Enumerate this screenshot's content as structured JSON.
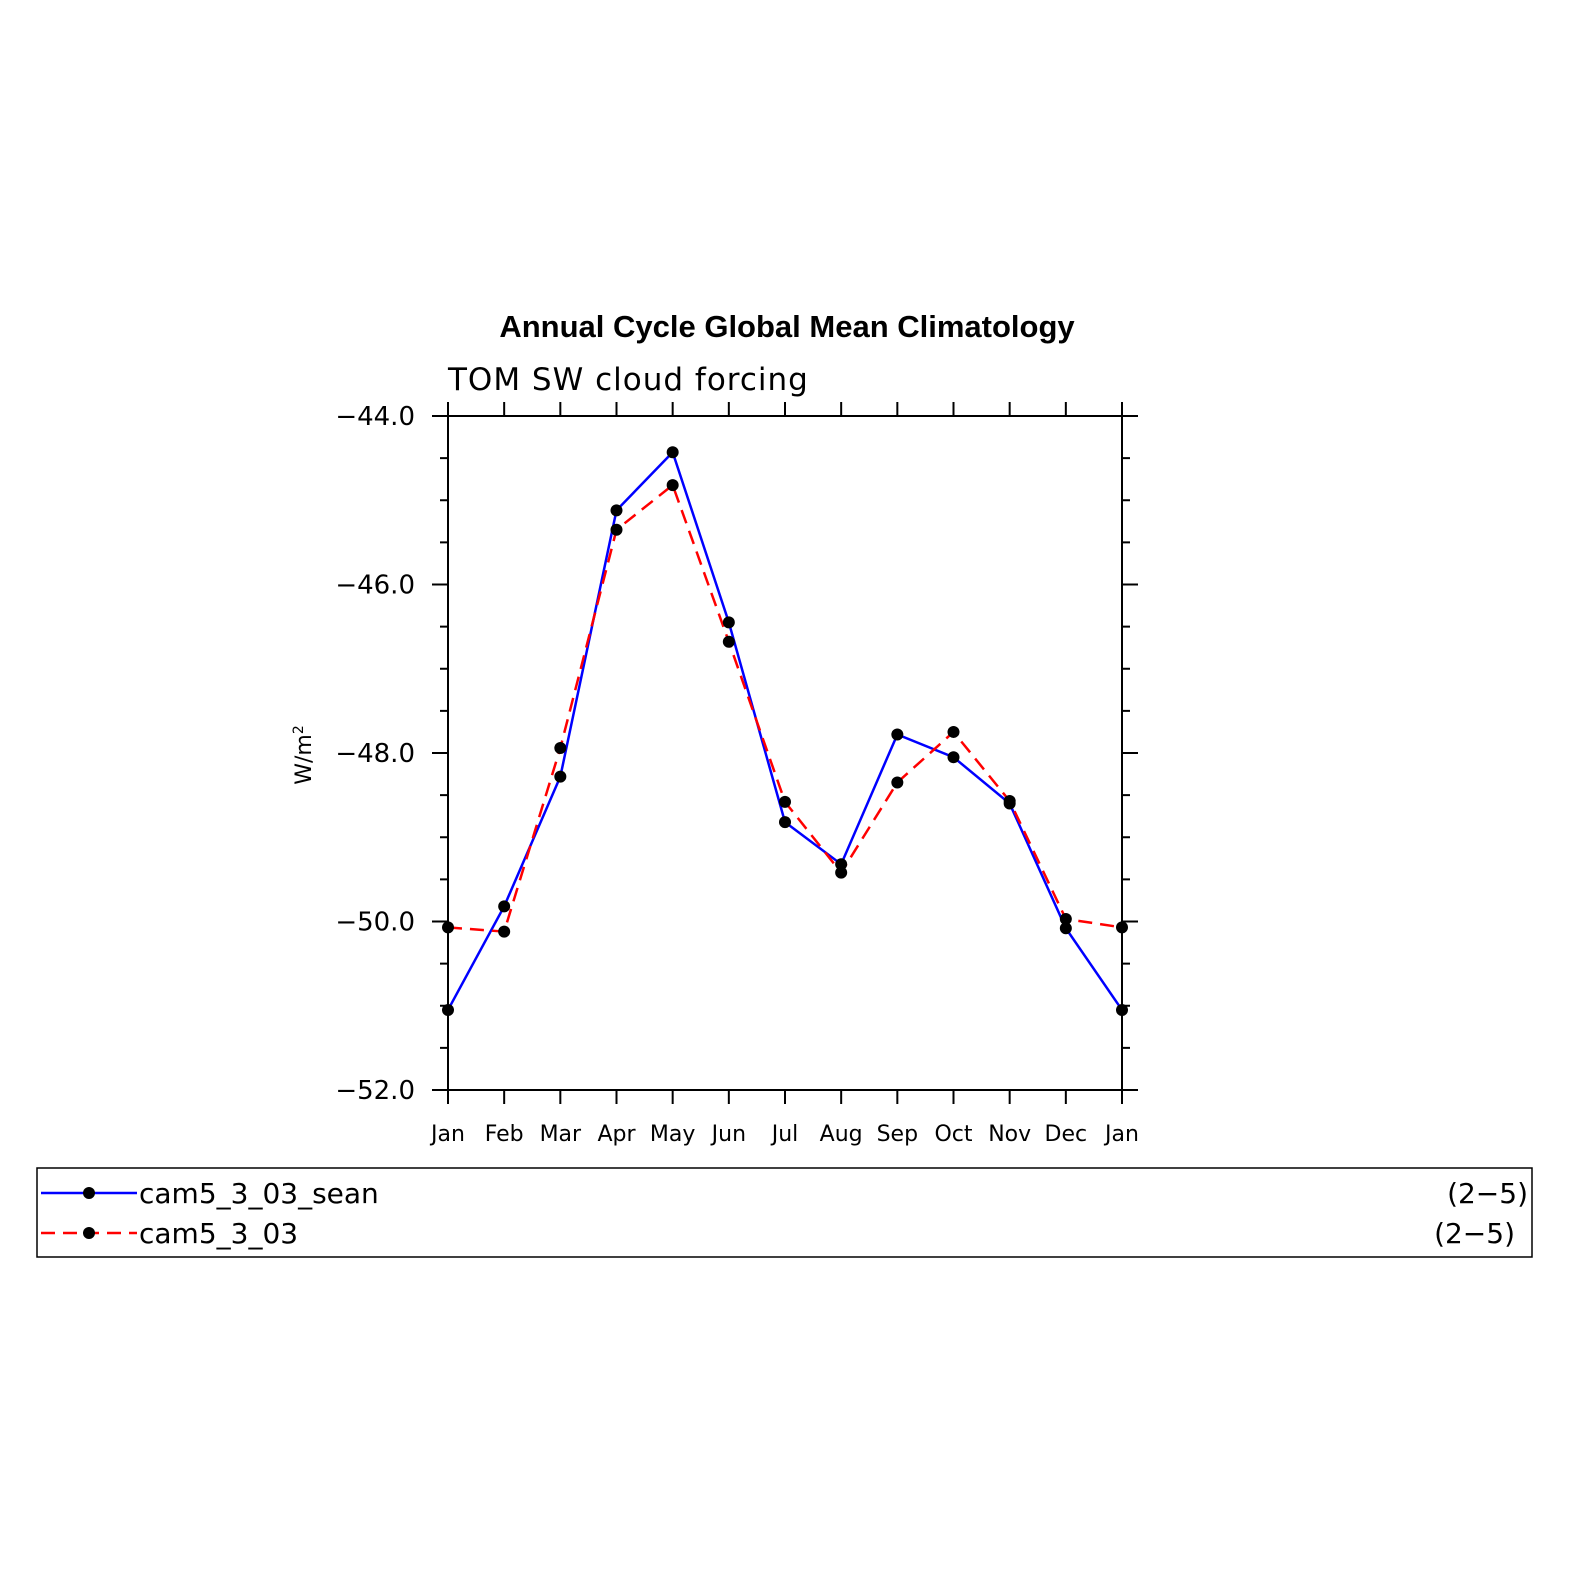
{
  "chart_data": {
    "type": "line",
    "title": "Annual Cycle Global Mean Climatology",
    "subtitle": "TOM SW cloud forcing",
    "ylabel_base": "W/m",
    "ylabel_sup": "2",
    "xlabel": "",
    "categories": [
      "Jan",
      "Feb",
      "Mar",
      "Apr",
      "May",
      "Jun",
      "Jul",
      "Aug",
      "Sep",
      "Oct",
      "Nov",
      "Dec",
      "Jan"
    ],
    "ylim": [
      -52.0,
      -44.0
    ],
    "yticks": [
      "-44.0",
      "-46.0",
      "-48.0",
      "-50.0",
      "-52.0"
    ],
    "grid": false,
    "legend_position": "bottom",
    "series": [
      {
        "name": "cam5_3_03_sean",
        "range_label": "(2−5)",
        "color": "#0000ff",
        "line_style": "solid",
        "marker": "filled-circle",
        "values": [
          -51.05,
          -49.82,
          -48.28,
          -45.12,
          -44.43,
          -46.45,
          -48.82,
          -49.32,
          -47.78,
          -48.05,
          -48.6,
          -50.08,
          -51.05
        ]
      },
      {
        "name": "cam5_3_03",
        "range_label": "(2−5)",
        "color": "#ff0000",
        "line_style": "dashed",
        "marker": "filled-circle",
        "values": [
          -50.07,
          -50.12,
          -47.94,
          -45.35,
          -44.82,
          -46.68,
          -48.58,
          -49.42,
          -48.35,
          -47.75,
          -48.57,
          -49.97,
          -50.07
        ]
      }
    ]
  }
}
